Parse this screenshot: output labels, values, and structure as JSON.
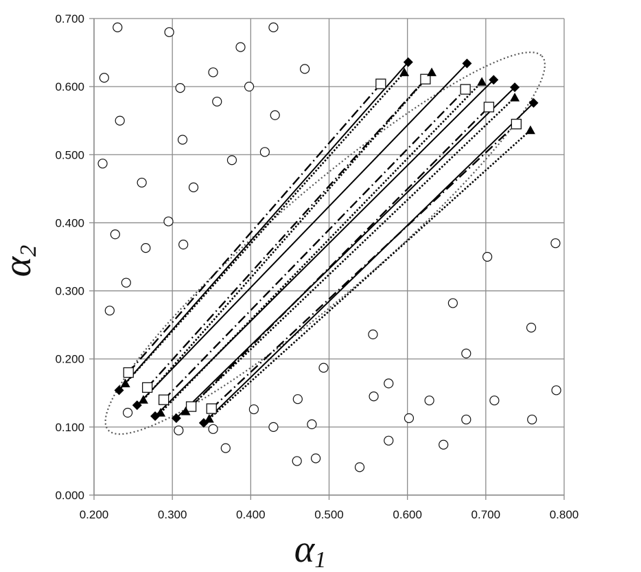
{
  "chart_data": {
    "type": "scatter",
    "title": "",
    "xlabel": "α",
    "xlabel_sub": "1",
    "ylabel": "α",
    "ylabel_sub": "2",
    "xlim": [
      0.2,
      0.8
    ],
    "ylim": [
      0.0,
      0.7
    ],
    "x_ticks": [
      "0.200",
      "0.300",
      "0.400",
      "0.500",
      "0.600",
      "0.700",
      "0.800"
    ],
    "y_ticks": [
      "0.000",
      "0.100",
      "0.200",
      "0.300",
      "0.400",
      "0.500",
      "0.600",
      "0.700"
    ],
    "grid": true,
    "legend": "none",
    "region_ellipse": {
      "center": [
        0.495,
        0.37
      ],
      "semi_major": 0.39,
      "semi_minor": 0.072,
      "angle_deg": 45,
      "style": "dotted"
    },
    "series": [
      {
        "marker": "circle-open",
        "points": [
          [
            0.23,
            0.687
          ],
          [
            0.296,
            0.68
          ],
          [
            0.429,
            0.687
          ],
          [
            0.387,
            0.658
          ],
          [
            0.213,
            0.613
          ],
          [
            0.352,
            0.621
          ],
          [
            0.469,
            0.626
          ],
          [
            0.31,
            0.598
          ],
          [
            0.398,
            0.6
          ],
          [
            0.357,
            0.578
          ],
          [
            0.233,
            0.55
          ],
          [
            0.431,
            0.558
          ],
          [
            0.313,
            0.522
          ],
          [
            0.418,
            0.504
          ],
          [
            0.211,
            0.487
          ],
          [
            0.376,
            0.492
          ],
          [
            0.261,
            0.459
          ],
          [
            0.327,
            0.452
          ],
          [
            0.295,
            0.402
          ],
          [
            0.227,
            0.383
          ],
          [
            0.266,
            0.363
          ],
          [
            0.314,
            0.368
          ],
          [
            0.241,
            0.312
          ],
          [
            0.22,
            0.271
          ],
          [
            0.789,
            0.37
          ],
          [
            0.702,
            0.35
          ],
          [
            0.658,
            0.282
          ],
          [
            0.758,
            0.246
          ],
          [
            0.556,
            0.236
          ],
          [
            0.675,
            0.208
          ],
          [
            0.493,
            0.187
          ],
          [
            0.576,
            0.164
          ],
          [
            0.557,
            0.145
          ],
          [
            0.46,
            0.141
          ],
          [
            0.628,
            0.139
          ],
          [
            0.711,
            0.139
          ],
          [
            0.79,
            0.154
          ],
          [
            0.243,
            0.121
          ],
          [
            0.404,
            0.126
          ],
          [
            0.602,
            0.113
          ],
          [
            0.675,
            0.111
          ],
          [
            0.759,
            0.111
          ],
          [
            0.308,
            0.095
          ],
          [
            0.352,
            0.097
          ],
          [
            0.429,
            0.1
          ],
          [
            0.478,
            0.104
          ],
          [
            0.576,
            0.08
          ],
          [
            0.646,
            0.074
          ],
          [
            0.368,
            0.069
          ],
          [
            0.459,
            0.05
          ],
          [
            0.483,
            0.054
          ],
          [
            0.539,
            0.041
          ]
        ]
      },
      {
        "marker": "diamond-filled",
        "line": "solid",
        "segments": [
          [
            [
              0.232,
              0.154
            ],
            [
              0.601,
              0.636
            ]
          ],
          [
            [
              0.255,
              0.132
            ],
            [
              0.676,
              0.634
            ]
          ],
          [
            [
              0.278,
              0.116
            ],
            [
              0.71,
              0.61
            ]
          ],
          [
            [
              0.305,
              0.113
            ],
            [
              0.737,
              0.599
            ]
          ],
          [
            [
              0.34,
              0.106
            ],
            [
              0.761,
              0.576
            ]
          ]
        ]
      },
      {
        "marker": "square-open",
        "line": "dash-dot",
        "segments": [
          [
            [
              0.244,
              0.18
            ],
            [
              0.566,
              0.604
            ]
          ],
          [
            [
              0.268,
              0.158
            ],
            [
              0.623,
              0.611
            ]
          ],
          [
            [
              0.289,
              0.14
            ],
            [
              0.674,
              0.596
            ]
          ],
          [
            [
              0.324,
              0.13
            ],
            [
              0.704,
              0.57
            ]
          ],
          [
            [
              0.35,
              0.127
            ],
            [
              0.739,
              0.545
            ]
          ]
        ]
      },
      {
        "marker": "triangle-filled",
        "line": "dotted",
        "segments": [
          [
            [
              0.24,
              0.164
            ],
            [
              0.596,
              0.621
            ]
          ],
          [
            [
              0.263,
              0.14
            ],
            [
              0.631,
              0.621
            ]
          ],
          [
            [
              0.285,
              0.121
            ],
            [
              0.695,
              0.607
            ]
          ],
          [
            [
              0.317,
              0.123
            ],
            [
              0.737,
              0.584
            ]
          ],
          [
            [
              0.347,
              0.112
            ],
            [
              0.757,
              0.536
            ]
          ]
        ]
      }
    ]
  }
}
